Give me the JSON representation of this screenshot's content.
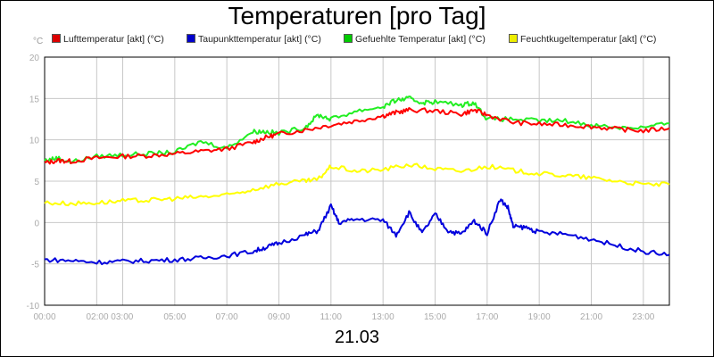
{
  "chart_data": {
    "type": "line",
    "title": "Temperaturen [pro Tag]",
    "unit_label": "°C",
    "date_label": "21.03",
    "ylim": [
      -10,
      20
    ],
    "xlim": [
      0,
      24
    ],
    "grid": true,
    "legend_position": "top",
    "y_ticks": [
      {
        "value": 20,
        "label": "20"
      },
      {
        "value": 15,
        "label": "15"
      },
      {
        "value": 10,
        "label": "10"
      },
      {
        "value": 5,
        "label": "5"
      },
      {
        "value": 0,
        "label": "0"
      },
      {
        "value": -5,
        "label": "-5"
      },
      {
        "value": -10,
        "label": "-10"
      }
    ],
    "x_ticks": [
      {
        "value": 0,
        "label": "00:00"
      },
      {
        "value": 2.5,
        "label": "02:00 03:00"
      },
      {
        "value": 5,
        "label": "05:00"
      },
      {
        "value": 7,
        "label": "07:00"
      },
      {
        "value": 9,
        "label": "09:00"
      },
      {
        "value": 11,
        "label": "11:00"
      },
      {
        "value": 13,
        "label": "13:00"
      },
      {
        "value": 15,
        "label": "15:00"
      },
      {
        "value": 17,
        "label": "17:00"
      },
      {
        "value": 19,
        "label": "19:00"
      },
      {
        "value": 21,
        "label": "21:00"
      },
      {
        "value": 23,
        "label": "23:00"
      }
    ],
    "x_gridlines": [
      0,
      2,
      3,
      5,
      7,
      9,
      11,
      13,
      15,
      17,
      19,
      21,
      23
    ],
    "series": [
      {
        "name": "Lufttemperatur [akt] (°C)",
        "color": "#ff0000",
        "swatch": "#dd0000",
        "x": [
          0,
          0.5,
          1,
          2,
          3,
          4,
          5,
          6,
          7,
          8,
          8.5,
          9,
          10,
          11,
          12,
          13,
          13.5,
          14,
          15,
          16,
          16.5,
          17,
          18,
          19,
          20,
          21,
          22,
          23,
          24
        ],
        "y": [
          7.2,
          7.5,
          7.4,
          7.8,
          8.0,
          8.1,
          8.3,
          8.6,
          8.9,
          9.7,
          10.3,
          10.7,
          11.2,
          11.8,
          12.3,
          12.9,
          13.3,
          13.6,
          13.5,
          13.1,
          13.6,
          13.0,
          12.1,
          11.9,
          11.8,
          11.6,
          11.3,
          11.1,
          11.4
        ]
      },
      {
        "name": "Taupunkttemperatur [akt] (°C)",
        "color": "#0000dd",
        "swatch": "#0000cc",
        "x": [
          0,
          1,
          2,
          3,
          4,
          5,
          6,
          7,
          8,
          8.5,
          9,
          10,
          10.5,
          11,
          11.3,
          12,
          13,
          13.5,
          14,
          14.5,
          15,
          15.5,
          16,
          16.5,
          17,
          17.5,
          17.8,
          18,
          18.5,
          19,
          20,
          21,
          22,
          23,
          24
        ],
        "y": [
          -4.5,
          -4.6,
          -4.8,
          -4.7,
          -4.6,
          -4.5,
          -4.3,
          -4.0,
          -3.5,
          -3.0,
          -2.5,
          -1.5,
          -1.0,
          2.0,
          0.0,
          0.4,
          0.3,
          -1.5,
          1.2,
          -1.3,
          1.0,
          -1.0,
          -1.4,
          0.2,
          -1.3,
          2.8,
          1.8,
          -0.5,
          -0.6,
          -1.2,
          -1.4,
          -2.0,
          -2.8,
          -3.5,
          -3.9
        ]
      },
      {
        "name": "Gefuehlte Temperatur [akt] (°C)",
        "color": "#22ee22",
        "swatch": "#00cc00",
        "x": [
          0,
          0.5,
          1,
          2,
          3,
          4,
          5,
          6,
          7,
          8,
          8.5,
          9,
          10,
          10.5,
          11,
          12,
          13,
          13.5,
          14,
          14.5,
          15,
          16,
          16.5,
          17,
          18,
          19,
          20,
          21,
          22,
          23,
          24
        ],
        "y": [
          7.5,
          7.8,
          7.3,
          8.0,
          8.2,
          8.3,
          8.5,
          9.8,
          9.0,
          11.0,
          11.0,
          10.8,
          11.5,
          13.0,
          12.5,
          13.5,
          14.0,
          14.8,
          15.0,
          14.5,
          14.6,
          14.2,
          14.5,
          12.5,
          12.5,
          12.3,
          12.3,
          11.8,
          11.5,
          11.5,
          12.0
        ]
      },
      {
        "name": "Feuchtkugeltemperatur [akt] (°C)",
        "color": "#ffff00",
        "swatch": "#eeee00",
        "x": [
          0,
          1,
          2,
          3,
          4,
          5,
          6,
          7,
          8,
          9,
          10,
          10.5,
          11,
          12,
          13,
          14,
          15,
          16,
          17,
          18,
          19,
          20,
          21,
          22,
          23,
          24
        ],
        "y": [
          2.4,
          2.3,
          2.4,
          2.6,
          2.7,
          2.9,
          3.1,
          3.3,
          4.0,
          4.7,
          5.0,
          5.2,
          6.8,
          6.2,
          6.4,
          7.0,
          6.5,
          6.2,
          6.8,
          6.3,
          5.9,
          5.7,
          5.4,
          5.0,
          4.6,
          4.6
        ]
      }
    ]
  }
}
